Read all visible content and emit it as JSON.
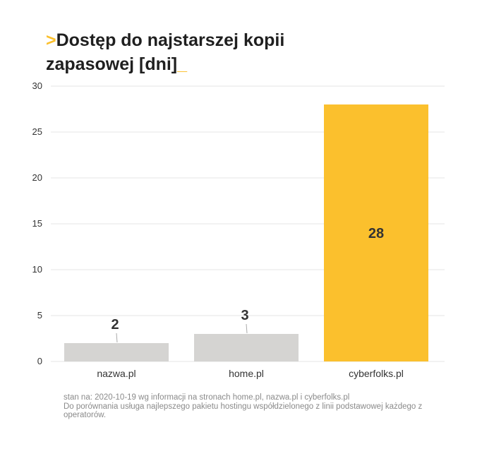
{
  "title": {
    "prefix": ">",
    "line1": "Dostęp do najstarszej kopii",
    "line2": "zapasowej [dni]",
    "suffix": "_"
  },
  "colors": {
    "accent": "#fbc02d",
    "bar_default": "#d5d4d2",
    "gridline": "#e6e6e6",
    "axis_text": "#333333",
    "label_text": "#333333"
  },
  "chart_data": {
    "type": "bar",
    "categories": [
      "nazwa.pl",
      "home.pl",
      "cyberfolks.pl"
    ],
    "values": [
      2,
      3,
      28
    ],
    "data_labels": [
      "2",
      "3",
      "28"
    ],
    "highlight_index": 2,
    "ylim": [
      0,
      30
    ],
    "yticks": [
      "0",
      "5",
      "10",
      "15",
      "20",
      "25",
      "30"
    ],
    "grid": true,
    "xlabel": "",
    "ylabel": ""
  },
  "footnote": {
    "line1": "stan na: 2020-10-19 wg informacji na stronach home.pl, nazwa.pl i cyberfolks.pl",
    "line2": "Do porównania usługa najlepszego pakietu hostingu współdzielonego z linii podstawowej każdego z operatorów."
  }
}
